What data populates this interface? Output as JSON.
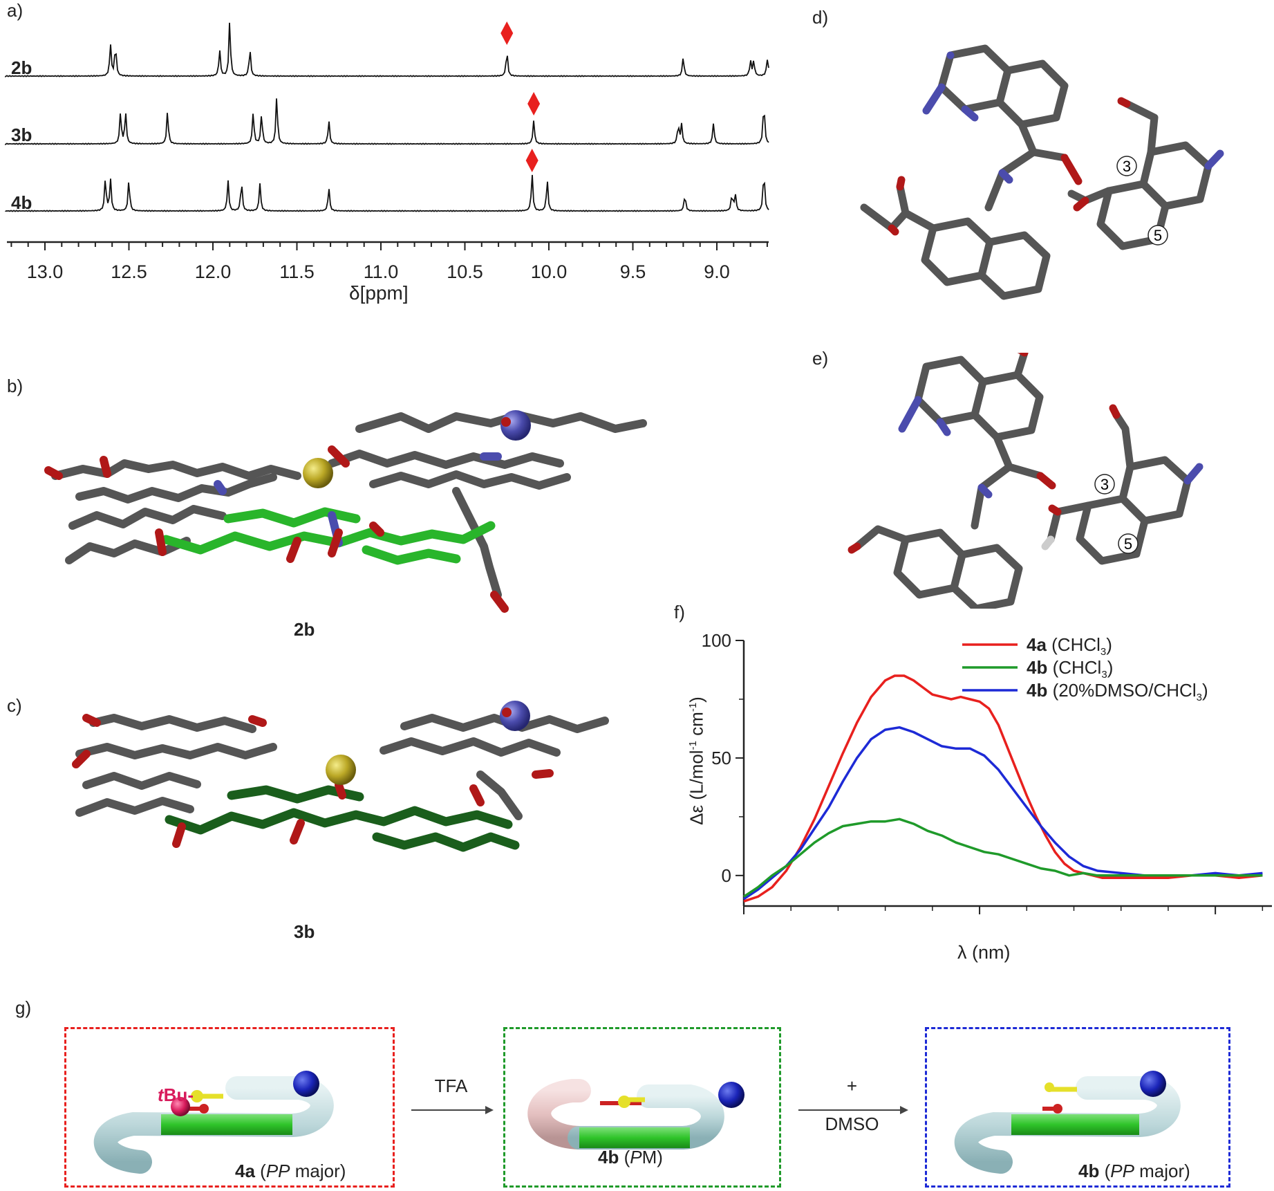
{
  "panels": {
    "a": "a)",
    "b": "b)",
    "c": "c)",
    "d": "d)",
    "e": "e)",
    "f": "f)",
    "g": "g)"
  },
  "nmr": {
    "spectra": [
      "2b",
      "3b",
      "4b"
    ],
    "x_ticks": [
      "13.0",
      "12.5",
      "12.0",
      "11.5",
      "11.0",
      "10.5",
      "10.0",
      "9.5",
      "9.0"
    ],
    "x_label_symbol": "δ",
    "x_label_unit": "[ppm]",
    "marker_color": "#e8201e"
  },
  "structures": {
    "b_label": "2b",
    "c_label": "3b",
    "d_atoms": [
      "3",
      "5"
    ],
    "e_atoms": [
      "3",
      "5"
    ]
  },
  "chart_data": {
    "type": "line",
    "xlabel": "λ (nm)",
    "ylabel_main": "Δε (L/mol",
    "ylabel_sup1": "-1",
    "ylabel_mid": " cm",
    "ylabel_sup2": "-1",
    "ylabel_end": ")",
    "xlim": [
      350,
      462
    ],
    "ylim": [
      -13,
      100
    ],
    "x_ticks": [
      350,
      400,
      450
    ],
    "y_ticks": [
      0,
      50,
      100
    ],
    "legend_position": "top-right",
    "series": [
      {
        "name": "4a",
        "cond_pre": "(CHCl",
        "cond_sub": "3",
        "cond_post": ")",
        "color": "#e8201e",
        "x": [
          350,
          353,
          356,
          359,
          362,
          365,
          368,
          371,
          374,
          377,
          380,
          382,
          384,
          386,
          388,
          390,
          392,
          394,
          396,
          398,
          400,
          402,
          404,
          406,
          408,
          410,
          412,
          414,
          416,
          418,
          420,
          422,
          424,
          426,
          428,
          430,
          435,
          440,
          445,
          450,
          455,
          460
        ],
        "y": [
          -11,
          -9,
          -5,
          2,
          12,
          24,
          38,
          52,
          65,
          76,
          83,
          85,
          85,
          83,
          80,
          77,
          76,
          75,
          76,
          75,
          74,
          71,
          64,
          54,
          44,
          34,
          25,
          17,
          10,
          5,
          2,
          1,
          0,
          -1,
          -1,
          -1,
          -1,
          -1,
          0,
          0,
          -1,
          0
        ]
      },
      {
        "name": "4b",
        "cond_pre": "(CHCl",
        "cond_sub": "3",
        "cond_post": ")",
        "color": "#1f9a2a",
        "x": [
          350,
          353,
          356,
          359,
          362,
          365,
          368,
          371,
          374,
          377,
          380,
          383,
          386,
          389,
          392,
          395,
          398,
          401,
          404,
          407,
          410,
          413,
          416,
          419,
          422,
          425,
          430,
          435,
          440,
          445,
          450,
          455,
          460
        ],
        "y": [
          -9,
          -5,
          0,
          4,
          9,
          14,
          18,
          21,
          22,
          23,
          23,
          24,
          22,
          19,
          17,
          14,
          12,
          10,
          9,
          7,
          5,
          3,
          2,
          0,
          1,
          0,
          0,
          0,
          0,
          0,
          0,
          0,
          0
        ]
      },
      {
        "name": "4b",
        "cond_pre": "(20%DMSO/CHCl",
        "cond_sub": "3",
        "cond_post": ")",
        "color": "#1d2ad6",
        "x": [
          350,
          353,
          356,
          359,
          362,
          365,
          368,
          371,
          374,
          377,
          380,
          383,
          386,
          389,
          392,
          395,
          398,
          401,
          404,
          407,
          410,
          413,
          416,
          419,
          422,
          425,
          430,
          435,
          440,
          445,
          450,
          455,
          460
        ],
        "y": [
          -10,
          -6,
          -1,
          4,
          11,
          20,
          29,
          40,
          50,
          58,
          62,
          63,
          61,
          58,
          55,
          54,
          54,
          51,
          45,
          37,
          29,
          21,
          14,
          8,
          4,
          2,
          1,
          0,
          0,
          0,
          1,
          0,
          1
        ]
      }
    ]
  },
  "scheme": {
    "boxes": [
      {
        "color": "#e8201e",
        "label_bold": "4a",
        "label_pre": " (",
        "label_ital": "PP",
        "label_post": " major)"
      },
      {
        "color": "#1f9a2a",
        "label_bold": "4b",
        "label_pre": " (",
        "label_ital": "P",
        "label_post": "M)"
      },
      {
        "color": "#1d2ad6",
        "label_bold": "4b",
        "label_pre": " (",
        "label_ital": "PP",
        "label_post": " major)"
      }
    ],
    "tbu_italic": "t",
    "tbu_rest": "Bu-",
    "arrow1_label": "TFA",
    "arrow2_top": "+",
    "arrow2_bottom": "DMSO"
  }
}
